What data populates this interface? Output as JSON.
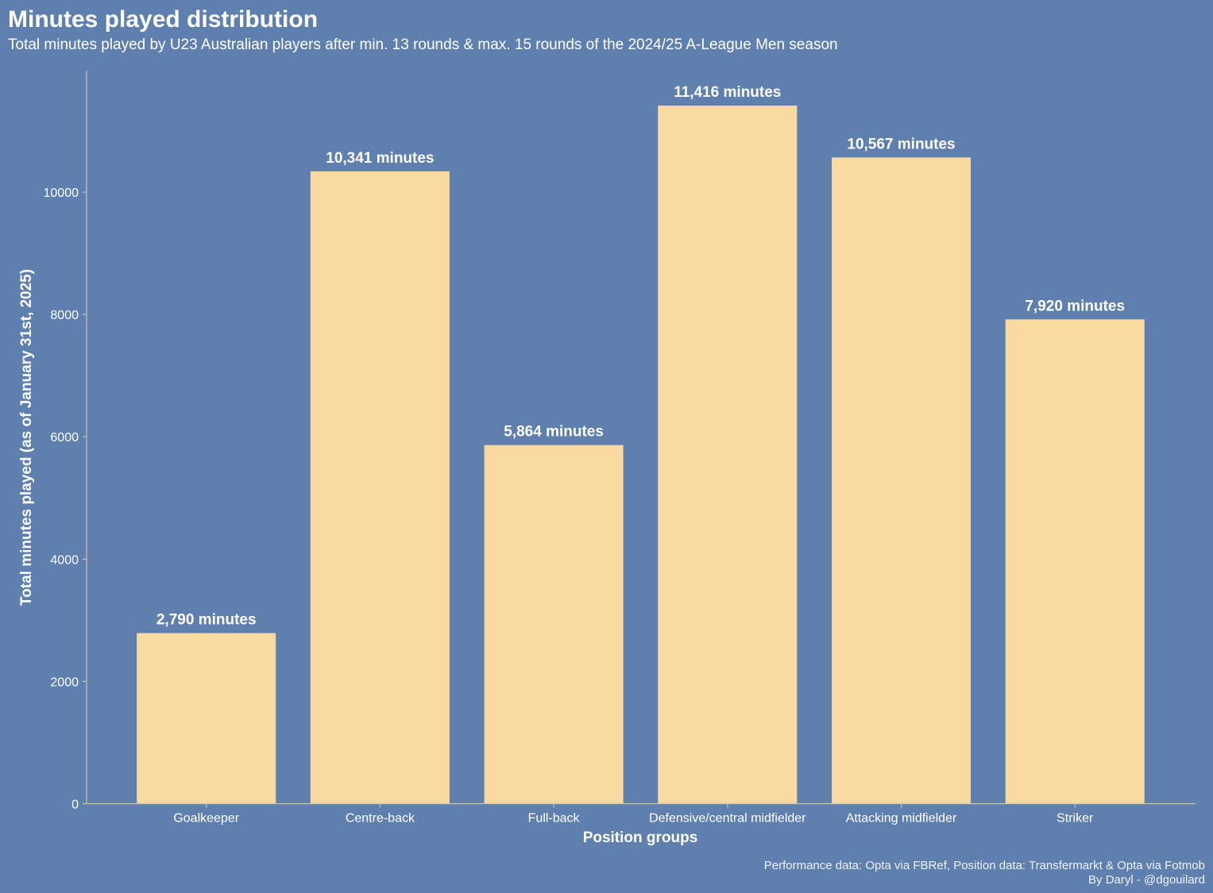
{
  "chart_data": {
    "type": "bar",
    "title": "Minutes played distribution",
    "subtitle": "Total minutes played by U23 Australian players after min. 13 rounds & max. 15 rounds of the 2024/25 A-League Men season",
    "xlabel": "Position groups",
    "ylabel": "Total minutes played (as of January 31st, 2025)",
    "categories": [
      "Goalkeeper",
      "Centre-back",
      "Full-back",
      "Defensive/central midfielder",
      "Attacking midfielder",
      "Striker"
    ],
    "values": [
      2790,
      10341,
      5864,
      11416,
      10567,
      7920
    ],
    "data_labels": [
      "2,790 minutes",
      "10,341 minutes",
      "5,864 minutes",
      "11,416 minutes",
      "10,567 minutes",
      "7,920 minutes"
    ],
    "yticks": [
      0,
      2000,
      4000,
      6000,
      8000,
      10000
    ],
    "ylim": [
      0,
      11987
    ],
    "grid": false,
    "legend": "none",
    "colors": {
      "background": "#5f7fae",
      "bar": "#f8d9a0",
      "text": "#ffffff",
      "axis": "#c9c4b8"
    },
    "caption": {
      "line1": "Performance data: Opta via FBRef, Position data: Transfermarkt & Opta via Fotmob",
      "line2": "By Daryl - @dgouilard"
    }
  }
}
